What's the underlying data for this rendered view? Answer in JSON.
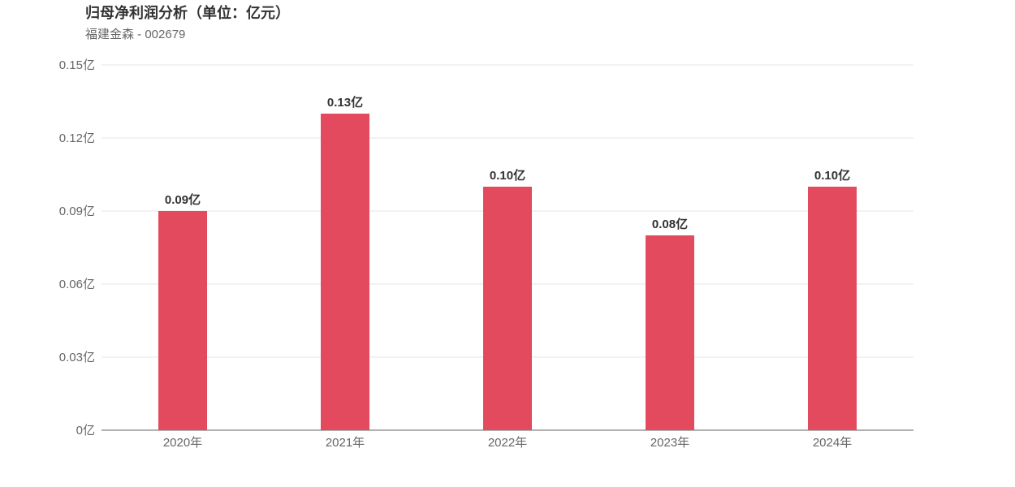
{
  "title": "归母净利润分析（单位：亿元）",
  "subtitle": "福建金森 - 002679",
  "colors": {
    "bar": "#e44a5e",
    "grid": "#e5e5e5",
    "axis": "#666666",
    "tick_text": "#666666",
    "label_text": "#333333"
  },
  "chart_data": {
    "type": "bar",
    "categories": [
      "2020年",
      "2021年",
      "2022年",
      "2023年",
      "2024年"
    ],
    "values": [
      0.09,
      0.13,
      0.1,
      0.08,
      0.1
    ],
    "data_labels": [
      "0.09亿",
      "0.13亿",
      "0.10亿",
      "0.08亿",
      "0.10亿"
    ],
    "y_ticks": [
      0,
      0.03,
      0.06,
      0.09,
      0.12,
      0.15
    ],
    "y_tick_labels": [
      "0亿",
      "0.03亿",
      "0.06亿",
      "0.09亿",
      "0.12亿",
      "0.15亿"
    ],
    "ylim": [
      0,
      0.15
    ],
    "grid": true,
    "legend": "none"
  }
}
